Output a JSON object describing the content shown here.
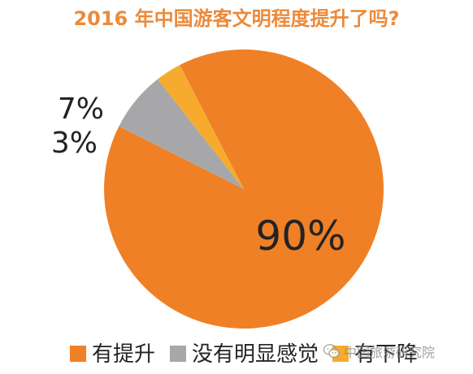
{
  "chart_data": {
    "type": "pie",
    "title": "2016 年中国游客文明程度提升了吗?",
    "slices": [
      {
        "label": "有提升",
        "value": 90,
        "display": "90%"
      },
      {
        "label": "没有明显感觉",
        "value": 7,
        "display": "7%"
      },
      {
        "label": "有下降",
        "value": 3,
        "display": "3%"
      }
    ],
    "legend_position": "bottom"
  },
  "watermark": {
    "text": "中国旅游研究院"
  },
  "colors": {
    "title": "#ec8a3a",
    "improved": "#f08025",
    "no_change": "#a7a7a9",
    "declined": "#f6ab2e",
    "label_text": "#232323",
    "legend_text": "#232323"
  }
}
